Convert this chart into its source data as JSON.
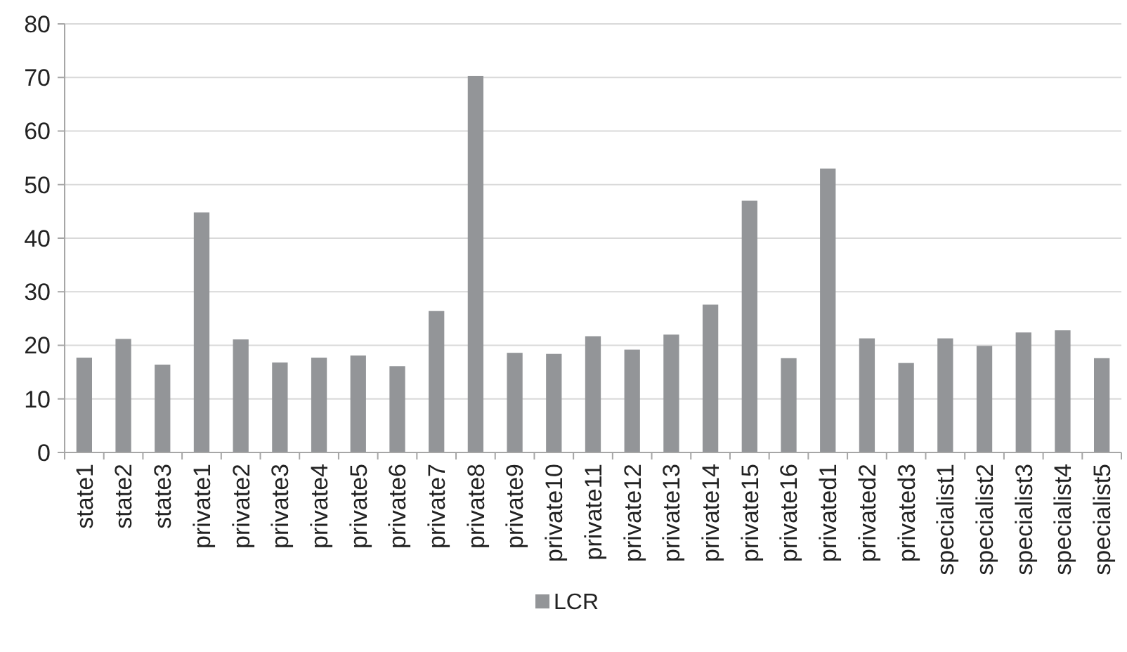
{
  "chart_data": {
    "type": "bar",
    "categories": [
      "state1",
      "state2",
      "state3",
      "private1",
      "private2",
      "private3",
      "private4",
      "private5",
      "private6",
      "private7",
      "private8",
      "private9",
      "private10",
      "private11",
      "private12",
      "private13",
      "private14",
      "private15",
      "private16",
      "privated1",
      "privated2",
      "privated3",
      "specialist1",
      "specialist2",
      "specialist3",
      "specialist4",
      "specialist5"
    ],
    "series": [
      {
        "name": "LCR",
        "color": "#939598",
        "values": [
          17.7,
          21.2,
          16.4,
          44.8,
          21.1,
          16.8,
          17.7,
          18.1,
          16.1,
          26.4,
          70.3,
          18.6,
          18.4,
          21.7,
          19.2,
          22.0,
          27.6,
          47.0,
          17.6,
          53.0,
          21.3,
          16.7,
          21.3,
          19.9,
          22.4,
          22.8,
          17.6
        ]
      }
    ],
    "ylim": [
      0,
      80
    ],
    "yticks": [
      0,
      10,
      20,
      30,
      40,
      50,
      60,
      70,
      80
    ],
    "grid": "y",
    "legend": "bottom"
  }
}
